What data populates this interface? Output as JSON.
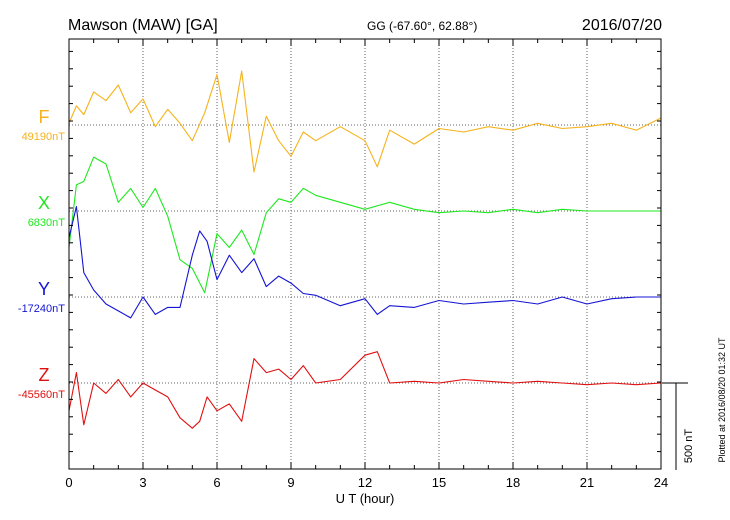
{
  "header": {
    "station": "Mawson (MAW)  [GA]",
    "coords": "GG (-67.60°,  62.88°)",
    "date": "2016/07/20"
  },
  "plotted_note": "Plotted at 2016/08/20 01:32 UT",
  "scale_label": "500 nT",
  "chart_data": {
    "type": "line",
    "title": "Mawson (MAW)  [GA]",
    "xlabel": "U T (hour)",
    "xlim": [
      0,
      24
    ],
    "xticks": [
      0,
      3,
      6,
      9,
      12,
      15,
      18,
      21,
      24
    ],
    "xtick_labels": [
      "0",
      "3",
      "6",
      "9",
      "12",
      "15",
      "18",
      "21",
      "24"
    ],
    "grid": true,
    "scale_bar_nT": 500,
    "series": [
      {
        "name": "F",
        "baseline_label": "49190nT",
        "baseline_nT": 49190,
        "color": "#f5b21b",
        "x": [
          0,
          0.3,
          0.6,
          1.0,
          1.5,
          2.0,
          2.5,
          3.0,
          3.5,
          4.0,
          4.5,
          5.0,
          5.5,
          6.0,
          6.5,
          7.0,
          7.5,
          8.0,
          8.5,
          9.0,
          9.5,
          10.0,
          11.0,
          12.0,
          12.5,
          13.0,
          14.0,
          15.0,
          16.0,
          17.0,
          18.0,
          19.0,
          20.0,
          21.0,
          22.0,
          23.0,
          24.0
        ],
        "values": [
          49200,
          49300,
          49250,
          49380,
          49330,
          49420,
          49260,
          49340,
          49180,
          49280,
          49200,
          49100,
          49260,
          49480,
          49090,
          49500,
          48920,
          49240,
          49100,
          49010,
          49150,
          49100,
          49180,
          49100,
          48950,
          49160,
          49080,
          49170,
          49150,
          49180,
          49160,
          49200,
          49170,
          49180,
          49200,
          49160,
          49230
        ]
      },
      {
        "name": "X",
        "baseline_label": "6830nT",
        "baseline_nT": 6830,
        "color": "#1fe81f",
        "x": [
          0,
          0.3,
          0.6,
          1.0,
          1.5,
          2.0,
          2.5,
          3.0,
          3.5,
          4.0,
          4.5,
          5.0,
          5.5,
          6.0,
          6.5,
          7.0,
          7.5,
          8.0,
          8.5,
          9.0,
          9.5,
          10.0,
          11.0,
          12.0,
          13.0,
          14.0,
          15.0,
          16.0,
          17.0,
          18.0,
          19.0,
          20.0,
          21.0,
          22.0,
          23.0,
          24.0
        ],
        "values": [
          6620,
          6980,
          7000,
          7140,
          7100,
          6880,
          6960,
          6850,
          6960,
          6800,
          6550,
          6500,
          6360,
          6700,
          6620,
          6720,
          6580,
          6820,
          6900,
          6880,
          6960,
          6920,
          6880,
          6840,
          6880,
          6840,
          6820,
          6830,
          6820,
          6840,
          6820,
          6840,
          6830,
          6830,
          6830,
          6830
        ]
      },
      {
        "name": "Y",
        "baseline_label": "-17240nT",
        "baseline_nT": -17240,
        "color": "#1414d4",
        "x": [
          0,
          0.3,
          0.6,
          1.0,
          1.5,
          2.0,
          2.5,
          3.0,
          3.5,
          4.0,
          4.5,
          5.0,
          5.3,
          5.6,
          6.0,
          6.5,
          7.0,
          7.5,
          8.0,
          8.5,
          9.0,
          9.5,
          10.0,
          11.0,
          12.0,
          12.5,
          13.0,
          14.0,
          15.0,
          16.0,
          17.0,
          18.0,
          19.0,
          20.0,
          21.0,
          22.0,
          23.0,
          24.0
        ],
        "values": [
          -16900,
          -16720,
          -17100,
          -17200,
          -17280,
          -17320,
          -17360,
          -17240,
          -17340,
          -17300,
          -17300,
          -17000,
          -16860,
          -16920,
          -17140,
          -17000,
          -17100,
          -17020,
          -17180,
          -17120,
          -17160,
          -17220,
          -17230,
          -17290,
          -17250,
          -17340,
          -17290,
          -17300,
          -17260,
          -17280,
          -17270,
          -17260,
          -17280,
          -17240,
          -17280,
          -17250,
          -17240,
          -17240
        ]
      },
      {
        "name": "Z",
        "baseline_label": "-45560nT",
        "baseline_nT": -45560,
        "color": "#e01010",
        "x": [
          0,
          0.3,
          0.6,
          1.0,
          1.5,
          2.0,
          2.5,
          3.0,
          3.5,
          4.0,
          4.5,
          5.0,
          5.3,
          5.6,
          6.0,
          6.5,
          7.0,
          7.5,
          8.0,
          8.5,
          9.0,
          9.5,
          10.0,
          11.0,
          12.0,
          12.5,
          13.0,
          14.0,
          15.0,
          16.0,
          17.0,
          18.0,
          19.0,
          20.0,
          21.0,
          22.0,
          23.0,
          24.0
        ],
        "values": [
          -45720,
          -45500,
          -45800,
          -45560,
          -45620,
          -45540,
          -45640,
          -45560,
          -45600,
          -45640,
          -45760,
          -45820,
          -45780,
          -45640,
          -45720,
          -45680,
          -45780,
          -45420,
          -45500,
          -45480,
          -45540,
          -45460,
          -45560,
          -45540,
          -45400,
          -45380,
          -45560,
          -45550,
          -45560,
          -45540,
          -45550,
          -45560,
          -45550,
          -45560,
          -45570,
          -45560,
          -45570,
          -45560
        ]
      }
    ]
  }
}
